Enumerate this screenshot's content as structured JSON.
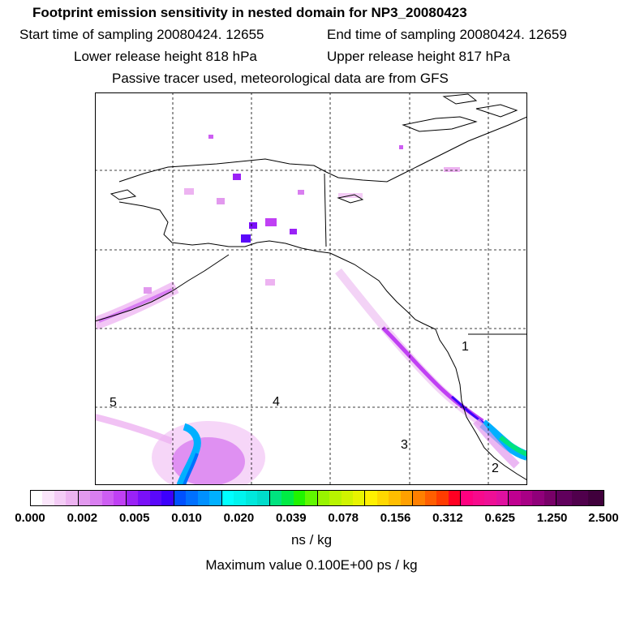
{
  "header": {
    "title": "Footprint emission sensitivity in nested domain for NP3_20080423",
    "start_time": "Start time of sampling 20080424. 12655",
    "end_time": "End time of sampling 20080424. 12659",
    "lower_release": "Lower release height  818 hPa",
    "upper_release": "Upper release height  817 hPa",
    "tracer_info": "Passive tracer used, meteorological data are from GFS"
  },
  "map": {
    "point_labels": [
      "5",
      "4",
      "3",
      "2",
      "1"
    ],
    "gridline_style": "dashed",
    "colors": {
      "land_outline": "#000000",
      "grid": "#000000",
      "frame": "#000000"
    }
  },
  "colorbar": {
    "tick_labels": [
      "0.000",
      "0.002",
      "0.005",
      "0.010",
      "0.020",
      "0.039",
      "0.078",
      "0.156",
      "0.312",
      "0.625",
      "1.250",
      "2.500"
    ],
    "segments": [
      [
        "#ffffff",
        "#fbe6fb",
        "#f4ccf6",
        "#edb3f1"
      ],
      [
        "#e299ee",
        "#d97ef0",
        "#cd5ef2",
        "#c040f4"
      ],
      [
        "#9a22f6",
        "#7a10f8",
        "#5a08fa",
        "#3c00fc"
      ],
      [
        "#0050ff",
        "#0070ff",
        "#0090ff",
        "#00b0ff"
      ],
      [
        "#00ffff",
        "#00f4ee",
        "#00e8dc",
        "#00dccb"
      ],
      [
        "#00e37f",
        "#00ec44",
        "#20f400",
        "#60f800"
      ],
      [
        "#98f400",
        "#b8f400",
        "#d0f400",
        "#e8f400"
      ],
      [
        "#fff000",
        "#ffd800",
        "#ffbe00",
        "#ffa000"
      ],
      [
        "#ff8000",
        "#ff5e00",
        "#ff3c00",
        "#ff0022"
      ],
      [
        "#ff0080",
        "#f70a8c",
        "#ee0f96",
        "#e010a0"
      ],
      [
        "#c00090",
        "#a80085",
        "#90007a",
        "#780068"
      ],
      [
        "#60005c",
        "#50004c",
        "#40003c"
      ]
    ],
    "unit": "ns / kg",
    "max_value": "Maximum value  0.100E+00 ps / kg"
  }
}
